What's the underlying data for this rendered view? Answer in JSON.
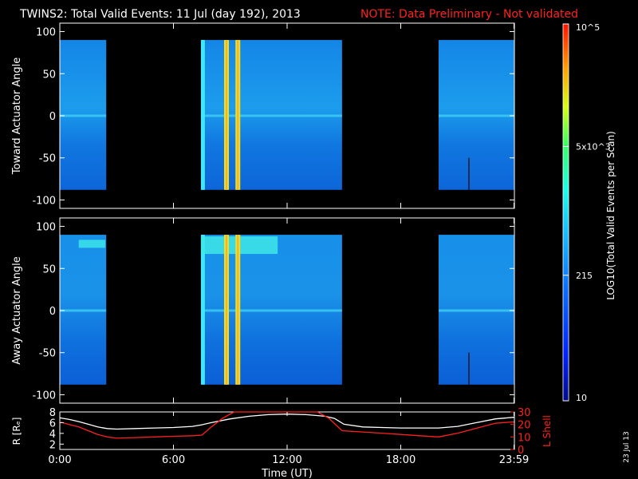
{
  "header": {
    "title": "TWINS2: Total Valid Events: 11 Jul (day 192), 2013",
    "note": "NOTE: Data Preliminary - Not validated"
  },
  "side_stamp": "23 Jul 13",
  "chart_data": [
    {
      "type": "heatmap",
      "ylabel": "Toward Actuator Angle",
      "ylim": [
        -110,
        110
      ],
      "yticks": [
        "100",
        "50",
        "0",
        "-50",
        "-100"
      ],
      "ytick_values": [
        100,
        50,
        0,
        -50,
        -100
      ],
      "y_data_range": [
        -88,
        90
      ],
      "xlim_hours": [
        0,
        24
      ],
      "data_blocks_hours": [
        [
          0,
          2.45
        ],
        [
          7.45,
          14.9
        ],
        [
          20.0,
          23.98
        ]
      ],
      "bright_stripes_hours": [
        8.8,
        9.4
      ],
      "grid": false
    },
    {
      "type": "heatmap",
      "ylabel": "Away Actuator Angle",
      "ylim": [
        -110,
        110
      ],
      "yticks": [
        "100",
        "50",
        "0",
        "-50",
        "-100"
      ],
      "ytick_values": [
        100,
        50,
        0,
        -50,
        -100
      ],
      "y_data_range": [
        -88,
        90
      ],
      "xlim_hours": [
        0,
        24
      ],
      "data_blocks_hours": [
        [
          0,
          2.45
        ],
        [
          7.45,
          14.9
        ],
        [
          20.0,
          23.98
        ]
      ],
      "bright_stripes_hours": [
        8.8,
        9.4
      ],
      "grid": false
    },
    {
      "type": "line",
      "xlabel": "Time (UT)",
      "xticks": [
        "0:00",
        "6:00",
        "12:00",
        "18:00",
        "23:59"
      ],
      "xtick_hours": [
        0,
        6,
        12,
        18,
        23.98
      ],
      "ylabel_left": "R [Rₑ]",
      "ylim_left": [
        1,
        8
      ],
      "yticks_left": [
        "8",
        "6",
        "4",
        "2"
      ],
      "ytick_values_left": [
        8,
        6,
        4,
        2
      ],
      "ylabel_right": "L Shell",
      "ylim_right": [
        0,
        30
      ],
      "yticks_right": [
        "30",
        "20",
        "10",
        "0"
      ],
      "ytick_values_right": [
        30,
        20,
        10,
        0
      ],
      "series": [
        {
          "axis": "left",
          "color": "#ffffff",
          "x": [
            0,
            0.5,
            1,
            1.5,
            2,
            2.5,
            3,
            4,
            5,
            6,
            7,
            7.5,
            8,
            9,
            10,
            11,
            12,
            13,
            14,
            14.5,
            15,
            16,
            17,
            18,
            19,
            20,
            21,
            22,
            23,
            23.98
          ],
          "y": [
            6.9,
            6.6,
            6.2,
            5.7,
            5.2,
            4.9,
            4.8,
            4.9,
            5.0,
            5.1,
            5.3,
            5.6,
            6.0,
            6.7,
            7.2,
            7.5,
            7.6,
            7.5,
            7.2,
            6.8,
            5.7,
            5.2,
            5.1,
            5.0,
            5.0,
            5.0,
            5.3,
            6.0,
            6.7,
            7.0
          ]
        },
        {
          "axis": "right",
          "color": "#ff2020",
          "x": [
            0,
            0.5,
            1,
            1.5,
            2,
            2.5,
            3,
            4,
            5,
            6,
            7,
            7.5,
            8,
            8.6,
            9.2,
            13.6,
            14.2,
            14.9,
            16,
            17,
            18,
            19,
            20,
            21,
            22,
            23,
            23.98
          ],
          "y": [
            22,
            20,
            18,
            15,
            12,
            10,
            9,
            9.5,
            10,
            10.5,
            11,
            11.5,
            18,
            25,
            32,
            32,
            25,
            15,
            14,
            13,
            12,
            11,
            10,
            13,
            17,
            21,
            22
          ]
        }
      ]
    }
  ],
  "colorbar": {
    "ticks": [
      "10",
      "215",
      "5x10^3",
      "10^5"
    ],
    "tick_counts": [
      10,
      215,
      5000,
      100000
    ],
    "range_counts": [
      10,
      100000
    ],
    "scale": "log",
    "label": "LOG10(Total Valid Events per Scan)"
  }
}
